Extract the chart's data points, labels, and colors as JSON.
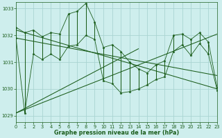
{
  "title": "Graphe pression niveau de la mer (hPa)",
  "bg_color": "#ceeeed",
  "grid_color": "#aad4d2",
  "line_color": "#1a5c1a",
  "xlim": [
    0,
    23
  ],
  "ylim": [
    1028.75,
    1033.25
  ],
  "yticks": [
    1029,
    1030,
    1031,
    1032,
    1033
  ],
  "hours": [
    0,
    1,
    2,
    3,
    4,
    5,
    6,
    7,
    8,
    9,
    10,
    11,
    12,
    13,
    14,
    15,
    16,
    17,
    18,
    19,
    20,
    21,
    22,
    23
  ],
  "pressure_max": [
    1032.3,
    1032.1,
    1032.2,
    1031.95,
    1032.1,
    1032.05,
    1032.8,
    1032.9,
    1033.2,
    1032.5,
    1031.55,
    1031.65,
    1031.4,
    1031.0,
    1030.75,
    1030.6,
    1030.9,
    1031.05,
    1032.0,
    1032.05,
    1031.85,
    1032.1,
    1031.75,
    1030.05
  ],
  "pressure_min": [
    1031.9,
    1029.1,
    1031.3,
    1031.1,
    1031.3,
    1031.1,
    1031.6,
    1031.65,
    1032.0,
    1031.85,
    1030.3,
    1030.2,
    1029.85,
    1029.9,
    1030.0,
    1030.15,
    1030.35,
    1030.45,
    1031.4,
    1031.65,
    1031.25,
    1031.7,
    1031.3,
    1029.95
  ],
  "trend_lines": [
    {
      "x": [
        0,
        23
      ],
      "y": [
        1032.2,
        1030.0
      ]
    },
    {
      "x": [
        0,
        23
      ],
      "y": [
        1031.9,
        1030.5
      ]
    },
    {
      "x": [
        0,
        14
      ],
      "y": [
        1029.1,
        1031.5
      ]
    },
    {
      "x": [
        0,
        23
      ],
      "y": [
        1029.1,
        1032.05
      ]
    }
  ]
}
